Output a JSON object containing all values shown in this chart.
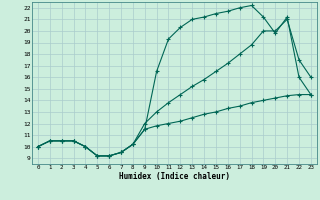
{
  "xlabel": "Humidex (Indice chaleur)",
  "bg_color": "#cceedd",
  "line_color": "#006655",
  "grid_color": "#aacccc",
  "xlim": [
    -0.5,
    23.5
  ],
  "ylim": [
    8.5,
    22.5
  ],
  "xticks": [
    0,
    1,
    2,
    3,
    4,
    5,
    6,
    7,
    8,
    9,
    10,
    11,
    12,
    13,
    14,
    15,
    16,
    17,
    18,
    19,
    20,
    21,
    22,
    23
  ],
  "yticks": [
    9,
    10,
    11,
    12,
    13,
    14,
    15,
    16,
    17,
    18,
    19,
    20,
    21,
    22
  ],
  "line1_x": [
    0,
    1,
    2,
    3,
    4,
    5,
    6,
    7,
    8,
    9,
    10,
    11,
    12,
    13,
    14,
    15,
    16,
    17,
    18,
    19,
    20,
    21,
    22,
    23
  ],
  "line1_y": [
    10,
    10.5,
    10.5,
    10.5,
    10,
    9.2,
    9.2,
    9.5,
    10.2,
    11.5,
    16.5,
    19.3,
    20.3,
    21.0,
    21.2,
    21.5,
    21.7,
    22.0,
    22.2,
    21.2,
    19.8,
    21.2,
    16.0,
    14.5
  ],
  "line2_x": [
    0,
    1,
    2,
    3,
    4,
    5,
    6,
    7,
    8,
    9,
    10,
    11,
    12,
    13,
    14,
    15,
    16,
    17,
    18,
    19,
    20,
    21,
    22,
    23
  ],
  "line2_y": [
    10,
    10.5,
    10.5,
    10.5,
    10,
    9.2,
    9.2,
    9.5,
    10.2,
    12.0,
    13.0,
    13.8,
    14.5,
    15.2,
    15.8,
    16.5,
    17.2,
    18.0,
    18.8,
    20.0,
    20.0,
    21.0,
    17.5,
    16.0
  ],
  "line3_x": [
    0,
    1,
    2,
    3,
    4,
    5,
    6,
    7,
    8,
    9,
    10,
    11,
    12,
    13,
    14,
    15,
    16,
    17,
    18,
    19,
    20,
    21,
    22,
    23
  ],
  "line3_y": [
    10,
    10.5,
    10.5,
    10.5,
    10,
    9.2,
    9.2,
    9.5,
    10.2,
    11.5,
    11.8,
    12.0,
    12.2,
    12.5,
    12.8,
    13.0,
    13.3,
    13.5,
    13.8,
    14.0,
    14.2,
    14.4,
    14.5,
    14.5
  ]
}
